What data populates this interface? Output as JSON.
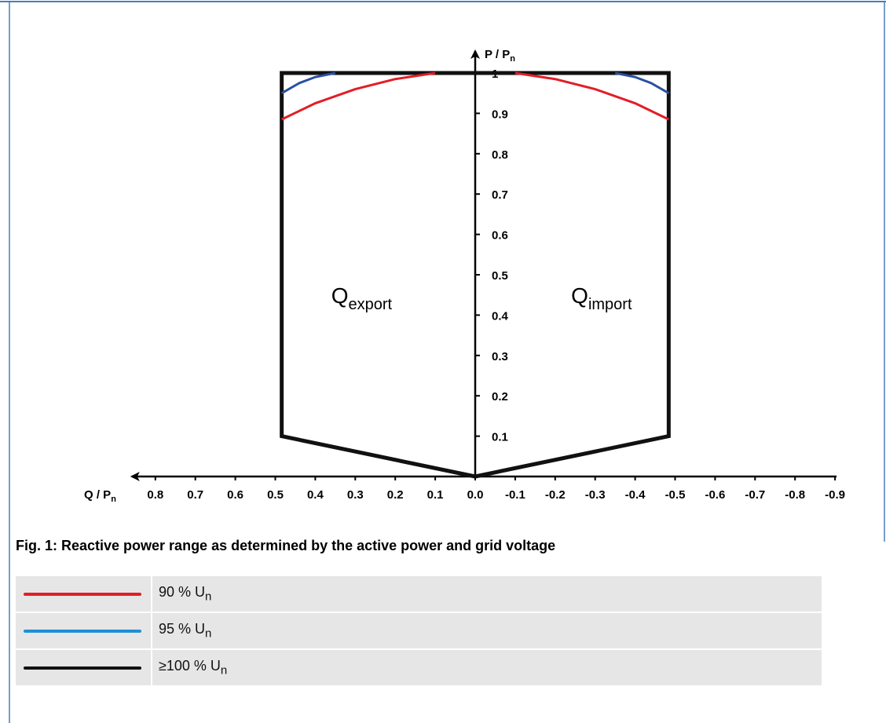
{
  "caption": "Fig. 1: Reactive power range as determined by the active power and grid voltage",
  "legend": [
    {
      "label": "90 % U",
      "sub": "n",
      "color": "#e11e26"
    },
    {
      "label": "95 % U",
      "sub": "n",
      "color": "#1f8fd6"
    },
    {
      "label": "≥100 % U",
      "sub": "n",
      "color": "#111111"
    }
  ],
  "chart_data": {
    "type": "line",
    "xlabel": {
      "main": "Q / P",
      "sub": "n"
    },
    "ylabel": {
      "main": "P / P",
      "sub": "n"
    },
    "x_reversed": true,
    "xlim": [
      0.8,
      -0.9
    ],
    "ylim": [
      0,
      1.0
    ],
    "x_ticks": [
      "0.8",
      "0.7",
      "0.6",
      "0.5",
      "0.4",
      "0.3",
      "0.2",
      "0.1",
      "0.0",
      "-0.1",
      "-0.2",
      "-0.3",
      "-0.4",
      "-0.5",
      "-0.6",
      "-0.7",
      "-0.8",
      "-0.9"
    ],
    "x_tick_values": [
      0.8,
      0.7,
      0.6,
      0.5,
      0.4,
      0.3,
      0.2,
      0.1,
      0.0,
      -0.1,
      -0.2,
      -0.3,
      -0.4,
      -0.5,
      -0.6,
      -0.7,
      -0.8,
      -0.9
    ],
    "y_ticks": [
      "0.1",
      "0.2",
      "0.3",
      "0.4",
      "0.5",
      "0.6",
      "0.7",
      "0.8",
      "0.9",
      "1"
    ],
    "y_tick_values": [
      0.1,
      0.2,
      0.3,
      0.4,
      0.5,
      0.6,
      0.7,
      0.8,
      0.9,
      1.0
    ],
    "region_labels": [
      {
        "main": "Q",
        "sub": "export",
        "x": 0.36,
        "y": 0.43
      },
      {
        "main": "Q",
        "sub": "import",
        "x": -0.24,
        "y": 0.43
      }
    ],
    "series": [
      {
        "name": "≥100 % U_n",
        "color": "#111111",
        "points": [
          [
            0.0,
            0.0
          ],
          [
            0.484,
            0.1
          ],
          [
            0.484,
            1.0
          ],
          [
            -0.484,
            1.0
          ],
          [
            -0.484,
            0.1
          ],
          [
            0.0,
            0.0
          ]
        ]
      },
      {
        "name": "95 % U_n",
        "color": "#2b4fa2",
        "points": [
          [
            0.484,
            0.95
          ],
          [
            0.44,
            0.975
          ],
          [
            0.4,
            0.99
          ],
          [
            0.35,
            1.0
          ]
        ]
      },
      {
        "name": "95 % U_n",
        "color": "#2b4fa2",
        "points": [
          [
            -0.35,
            1.0
          ],
          [
            -0.4,
            0.99
          ],
          [
            -0.44,
            0.975
          ],
          [
            -0.484,
            0.95
          ]
        ]
      },
      {
        "name": "90 % U_n",
        "color": "#e11e26",
        "points": [
          [
            0.484,
            0.885
          ],
          [
            0.4,
            0.925
          ],
          [
            0.3,
            0.96
          ],
          [
            0.2,
            0.985
          ],
          [
            0.1,
            1.0
          ]
        ]
      },
      {
        "name": "90 % U_n",
        "color": "#e11e26",
        "points": [
          [
            -0.1,
            1.0
          ],
          [
            -0.2,
            0.985
          ],
          [
            -0.3,
            0.96
          ],
          [
            -0.4,
            0.925
          ],
          [
            -0.484,
            0.885
          ]
        ]
      }
    ]
  }
}
